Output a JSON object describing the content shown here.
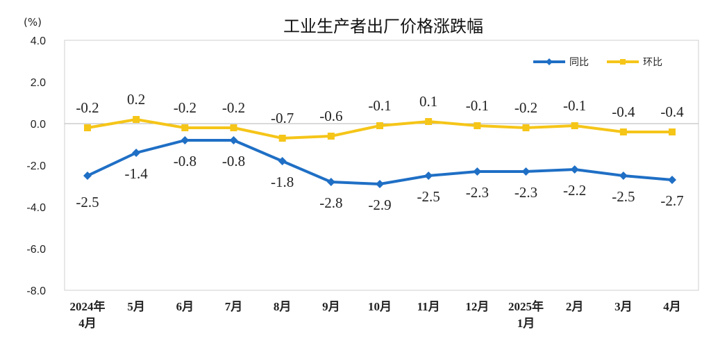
{
  "chart_data": {
    "type": "line",
    "title": "工业生产者出厂价格涨跌幅",
    "ylabel": "(%)",
    "ylim": [
      -8.0,
      4.0
    ],
    "yticks": [
      "4.0",
      "2.0",
      "0.0",
      "-2.0",
      "-4.0",
      "-6.0",
      "-8.0"
    ],
    "ytick_values": [
      4,
      2,
      0,
      -2,
      -4,
      -6,
      -8
    ],
    "categories": [
      [
        "2024年",
        "4月"
      ],
      [
        "5月"
      ],
      [
        "6月"
      ],
      [
        "7月"
      ],
      [
        "8月"
      ],
      [
        "9月"
      ],
      [
        "10月"
      ],
      [
        "11月"
      ],
      [
        "12月"
      ],
      [
        "2025年",
        "1月"
      ],
      [
        "2月"
      ],
      [
        "3月"
      ],
      [
        "4月"
      ]
    ],
    "series": [
      {
        "name": "同比",
        "color": "#1f6fc5",
        "marker": "diamond",
        "values": [
          -2.5,
          -1.4,
          -0.8,
          -0.8,
          -1.8,
          -2.8,
          -2.9,
          -2.5,
          -2.3,
          -2.3,
          -2.2,
          -2.5,
          -2.7
        ],
        "labels": [
          "-2.5",
          "-1.4",
          "-0.8",
          "-0.8",
          "-1.8",
          "-2.8",
          "-2.9",
          "-2.5",
          "-2.3",
          "-2.3",
          "-2.2",
          "-2.5",
          "-2.7"
        ]
      },
      {
        "name": "环比",
        "color": "#f5c518",
        "marker": "square",
        "values": [
          -0.2,
          0.2,
          -0.2,
          -0.2,
          -0.7,
          -0.6,
          -0.1,
          0.1,
          -0.1,
          -0.2,
          -0.1,
          -0.4,
          -0.4
        ],
        "labels": [
          "-0.2",
          "0.2",
          "-0.2",
          "-0.2",
          "-0.7",
          "-0.6",
          "-0.1",
          "0.1",
          "-0.1",
          "-0.2",
          "-0.1",
          "-0.4",
          "-0.4"
        ]
      }
    ],
    "legend": "top-right",
    "grid": false
  }
}
